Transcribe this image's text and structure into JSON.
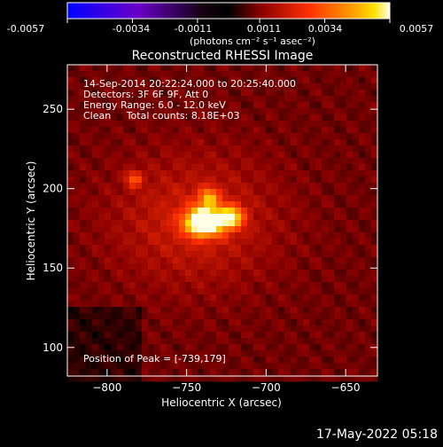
{
  "colorbar": {
    "ticks": [
      "-0.0057",
      "-0.0034",
      "-0.0011",
      "0.0011",
      "0.0034",
      "0.0057"
    ],
    "unit_label": "(photons cm⁻² s⁻¹ asec⁻²)"
  },
  "chart_data": {
    "type": "heatmap",
    "title": "Reconstructed RHESSI Image",
    "xlabel": "Heliocentric X (arcsec)",
    "ylabel": "Heliocentric Y (arcsec)",
    "xlim": [
      -825,
      -630
    ],
    "ylim": [
      82,
      278
    ],
    "x_ticks": [
      -800,
      -750,
      -700,
      -650
    ],
    "y_ticks": [
      100,
      150,
      200,
      250
    ],
    "x_tick_labels": [
      "−800",
      "−750",
      "−700",
      "−650"
    ],
    "y_tick_labels": [
      "100",
      "150",
      "200",
      "250"
    ],
    "color_range": [
      -0.0057,
      0.0057
    ],
    "colormap": "blue-purple-black-red-orange-yellow-white",
    "peak_position": [
      -739,
      179
    ],
    "annotations": [
      "14-Sep-2014 20:22:24.000 to 20:25:40.000",
      "Detectors: 3F 6F 9F, Att 0",
      "Energy Range: 6.0 - 12.0 keV",
      "Clean     Total counts: 8.18E+03",
      "Position of Peak = [-739,179]"
    ]
  },
  "footer": {
    "timestamp": "17-May-2022 05:18"
  }
}
